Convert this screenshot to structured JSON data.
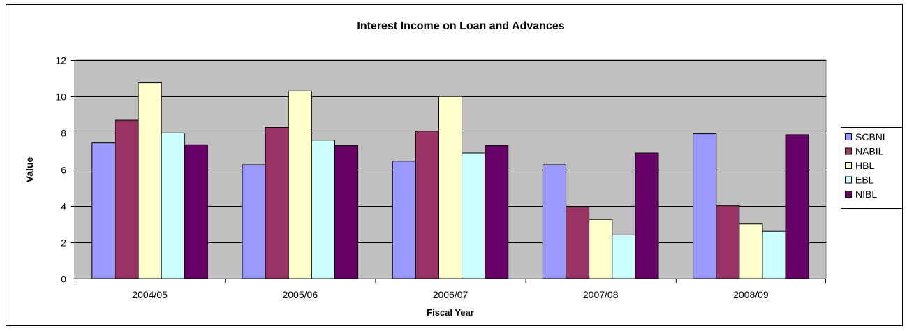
{
  "chart_data": {
    "type": "bar",
    "title": "Interest Income on Loan and Advances",
    "xlabel": "Fiscal Year",
    "ylabel": "Value",
    "ylim": [
      0,
      12
    ],
    "yticks": [
      0,
      2,
      4,
      6,
      8,
      10,
      12
    ],
    "grid": true,
    "legend_position": "right",
    "categories": [
      "2004/05",
      "2005/06",
      "2006/07",
      "2007/08",
      "2008/09"
    ],
    "series": [
      {
        "name": "SCBNL",
        "color": "#9999ff",
        "values": [
          7.45,
          6.25,
          6.45,
          6.25,
          7.95
        ]
      },
      {
        "name": "NABIL",
        "color": "#993366",
        "values": [
          8.7,
          8.3,
          8.1,
          3.95,
          4.0
        ]
      },
      {
        "name": "HBL",
        "color": "#ffffcc",
        "values": [
          10.75,
          10.3,
          10.0,
          3.25,
          3.0
        ]
      },
      {
        "name": "EBL",
        "color": "#ccffff",
        "values": [
          8.0,
          7.6,
          6.9,
          2.4,
          2.6
        ]
      },
      {
        "name": "NIBL",
        "color": "#660066",
        "values": [
          7.35,
          7.3,
          7.3,
          6.9,
          7.9
        ]
      }
    ]
  }
}
